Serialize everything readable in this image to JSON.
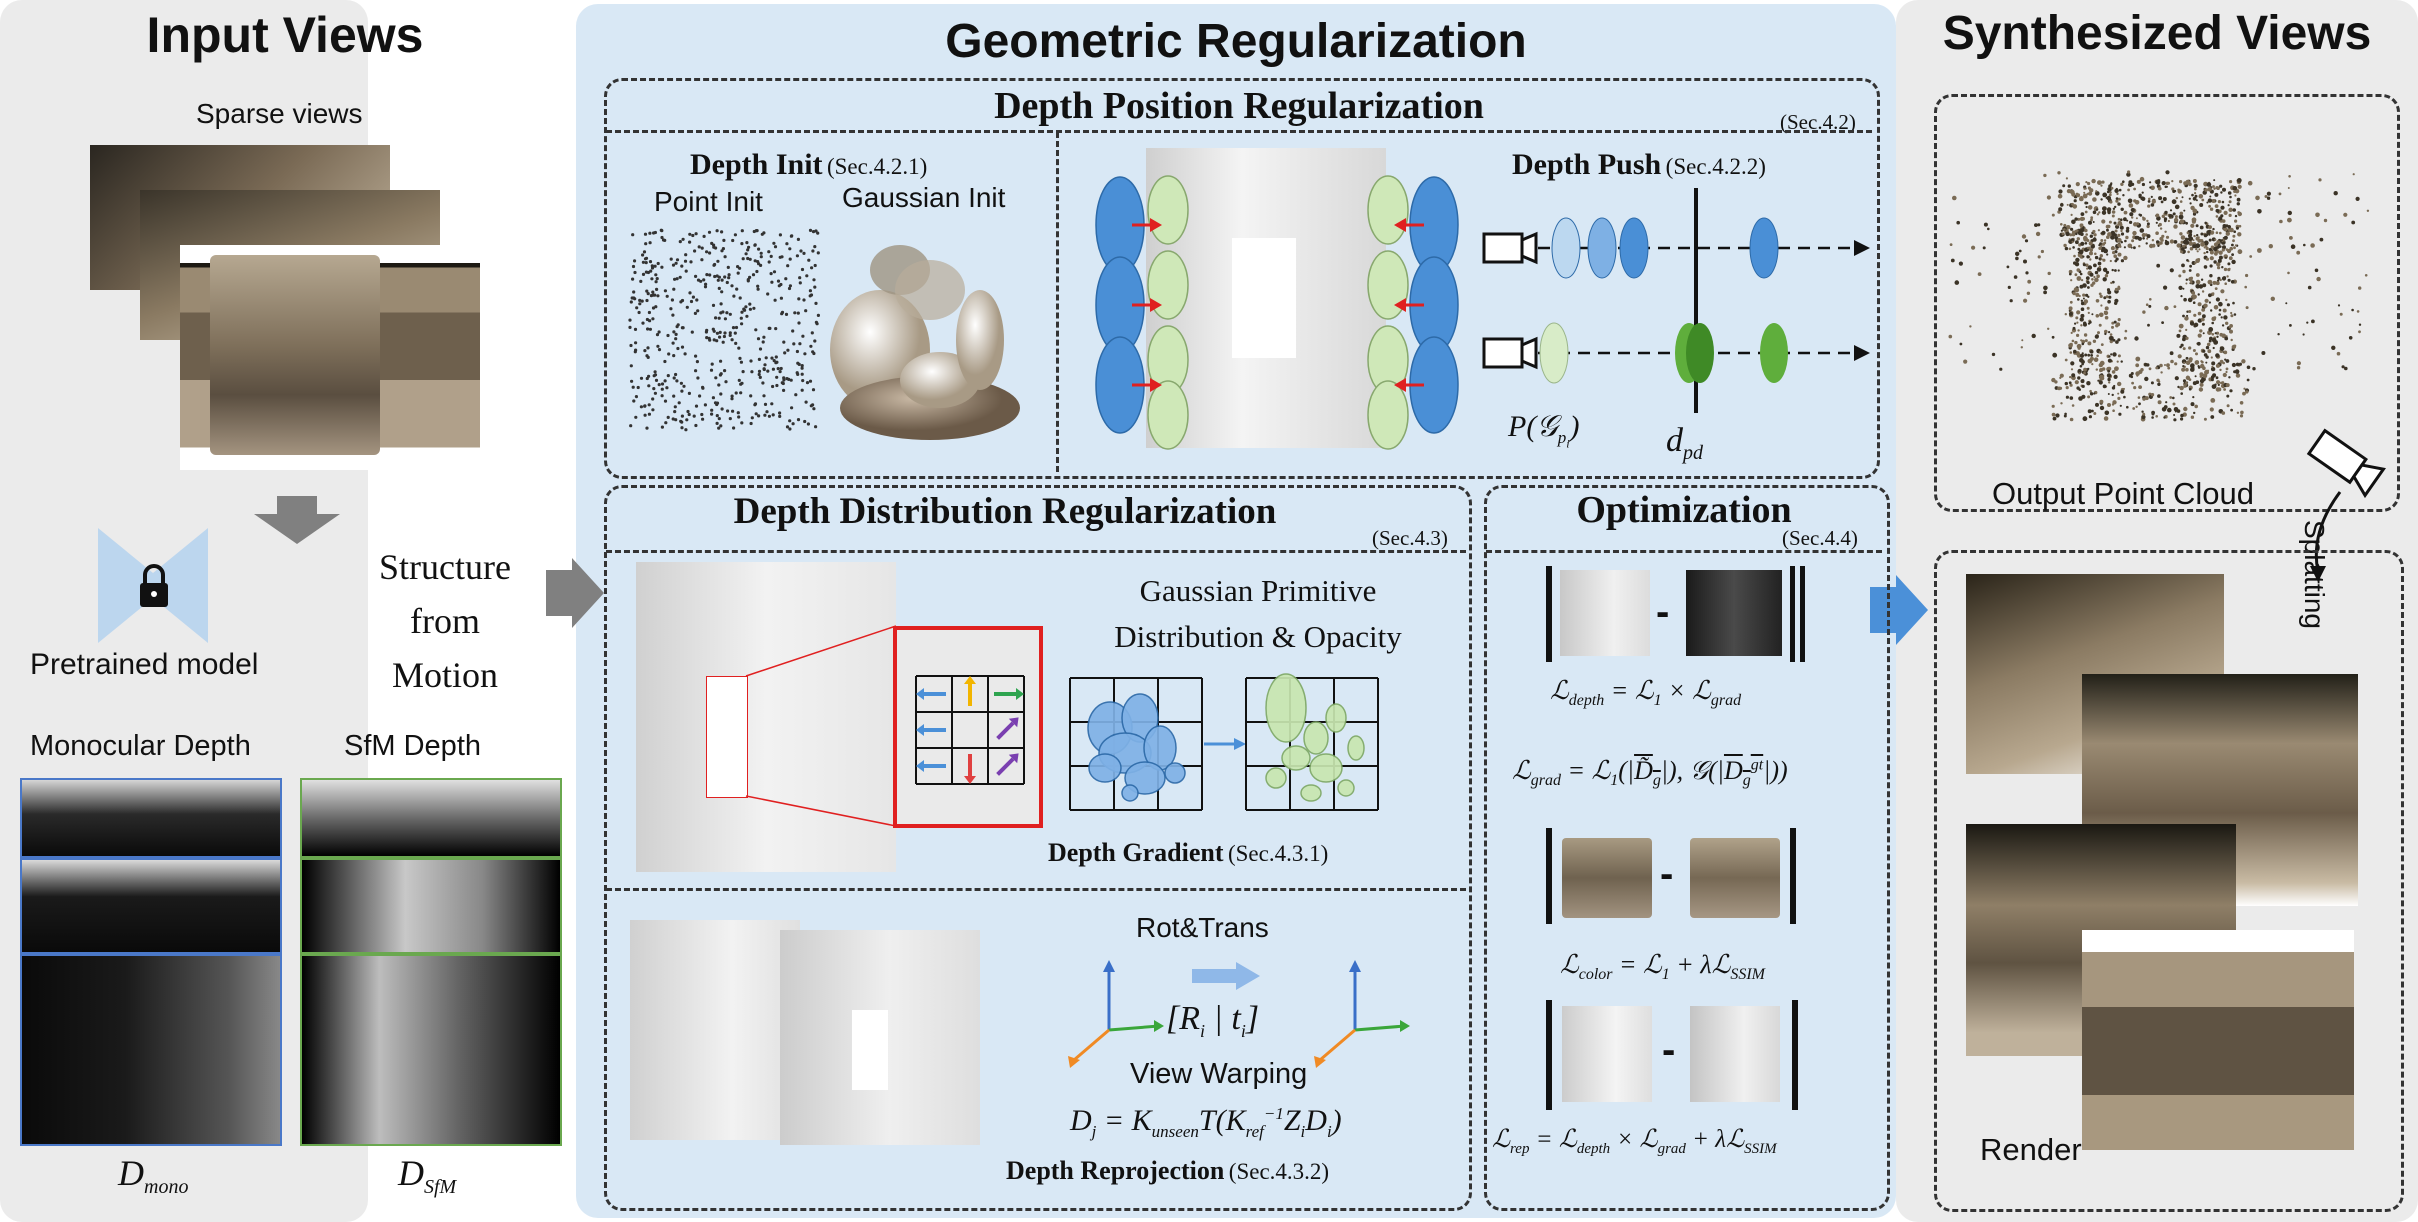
{
  "input_views": {
    "title": "Input Views",
    "sparse_label": "Sparse views",
    "pretrained_label": "Pretrained model",
    "sfm_process": "Structure from Motion",
    "mono_depth_label": "Monocular Depth",
    "sfm_depth_label": "SfM Depth",
    "d_mono": "D",
    "d_mono_sub": "mono",
    "d_sfm": "D",
    "d_sfm_sub": "SfM"
  },
  "geometric": {
    "title": "Geometric Regularization",
    "position": {
      "title": "Depth Position Regularization",
      "sec": "(Sec.4.2)",
      "init_title": "Depth Init",
      "init_sec": "(Sec.4.2.1)",
      "point_init": "Point Init",
      "gaussian_init": "Gaussian Init",
      "push_title": "Depth Push",
      "push_sec": "(Sec.4.2.2)",
      "p_label": "P(𝒢",
      "p_sub": "p",
      "p_subsub": "i",
      "p_close": ")",
      "d_label": "d",
      "d_sub": "pd"
    },
    "distribution": {
      "title": "Depth Distribution Regularization",
      "sec": "(Sec.4.3)",
      "primitive_text": "Gaussian Primitive Distribution & Opacity",
      "gradient_title": "Depth Gradient",
      "gradient_sec": "(Sec.4.3.1)",
      "rot_trans": "Rot&Trans",
      "rt_matrix": "[R_i | t_i]",
      "view_warping": "View Warping",
      "reproj_eq": "D_j = K_unseen T(K_ref^-1 Z_i D_i)",
      "reproj_title": "Depth Reprojection",
      "reproj_sec": "(Sec.4.3.2)"
    },
    "optimization": {
      "title": "Optimization",
      "sec": "(Sec.4.4)",
      "minus": "-",
      "eq_depth": "ℒ_depth = ℒ_1 × ℒ_grad",
      "eq_grad": "ℒ_grad = ℒ_1(|D̃_g|), 𝒢(|D_g^gt|))",
      "eq_color": "ℒ_color = ℒ_1 + λℒ_SSIM",
      "eq_rep": "ℒ_rep = ℒ_depth × ℒ_grad + λℒ_SSIM"
    }
  },
  "synthesized": {
    "title": "Synthesized Views",
    "point_cloud_label": "Output Point Cloud",
    "splatting_label": "Splatting",
    "render_label": "Render"
  },
  "colors": {
    "left_panel": "#ebebeb",
    "mid_panel": "#d9e8f5",
    "right_panel": "#ebebeb",
    "gaussian_blue": "#4a8fd6",
    "gaussian_green": "#cfe8b8",
    "gaussian_dark_green": "#5fae3c",
    "arrow_red": "#e02020",
    "arrow_gray": "#808080",
    "arrow_blue": "#4b90d8",
    "mono_border": "#4a78c8",
    "sfm_border": "#6aa84f"
  }
}
